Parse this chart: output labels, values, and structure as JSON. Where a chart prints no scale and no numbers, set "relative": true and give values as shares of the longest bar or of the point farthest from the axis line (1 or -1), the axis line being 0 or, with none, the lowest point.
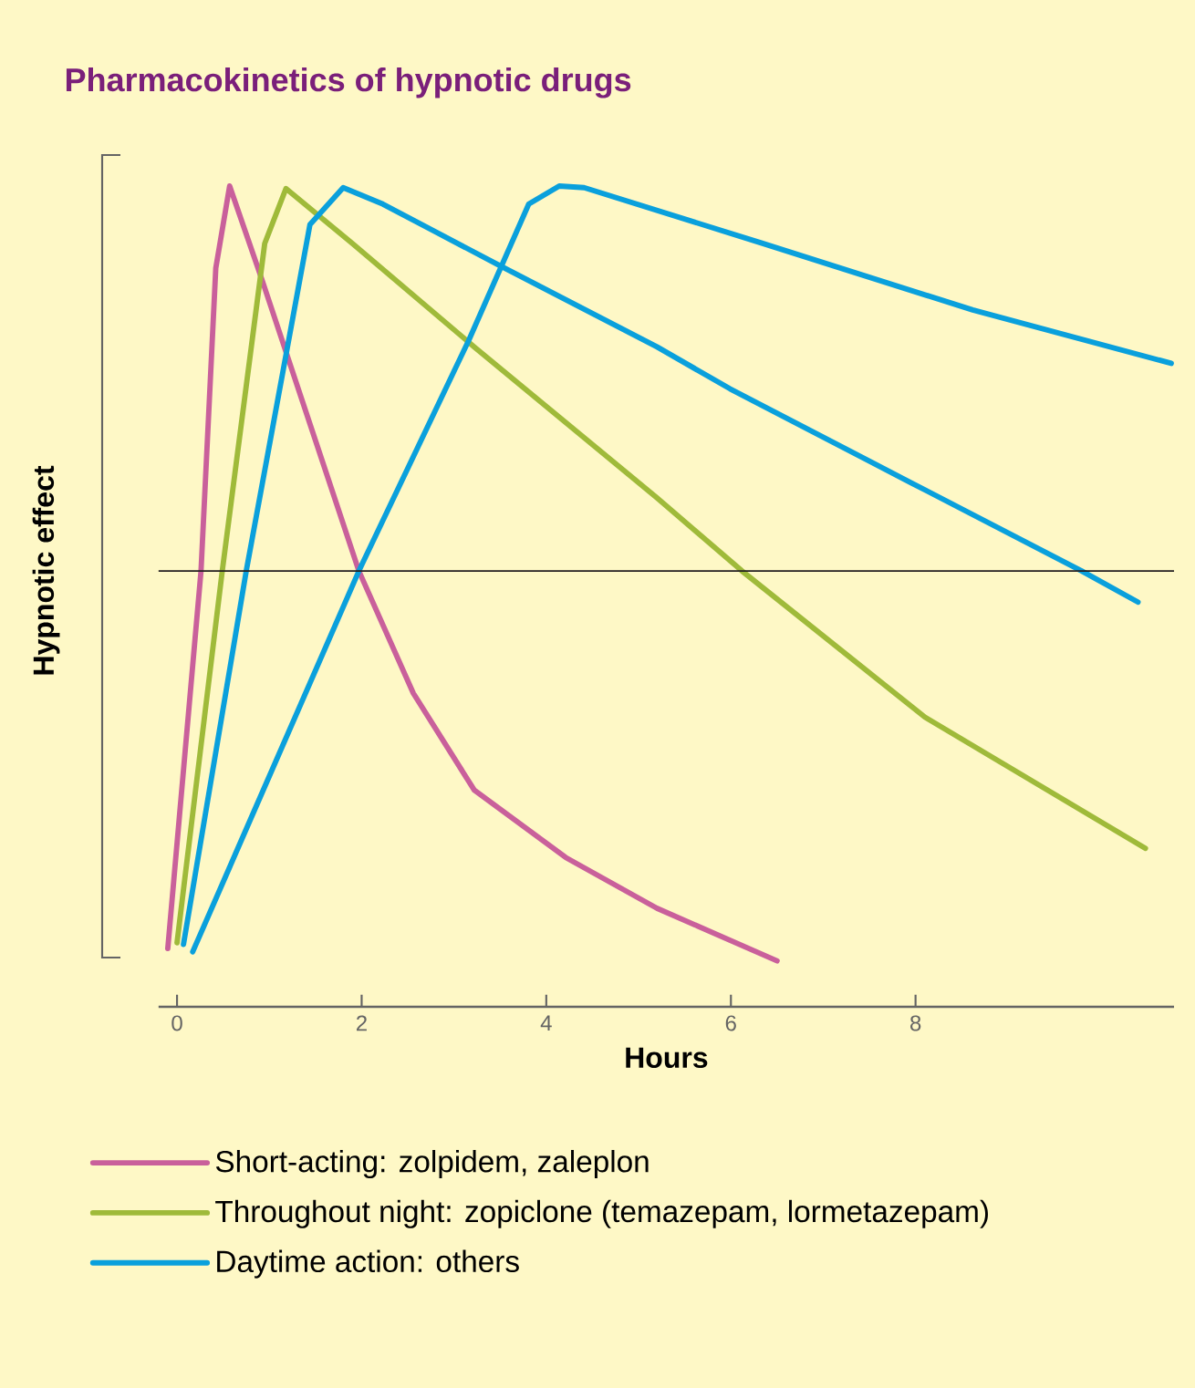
{
  "chart_data": {
    "type": "line",
    "title": "Pharmacokinetics of hypnotic drugs",
    "xlabel": "Hours",
    "ylabel": "Hypnotic effect",
    "relative": true,
    "xlim": [
      -0.2,
      10.8
    ],
    "xticks": [
      0,
      2,
      4,
      6,
      8
    ],
    "legend": "bottom",
    "marker": "none",
    "line_style": "solid",
    "grid": false,
    "ref_lines": [
      {
        "axis": "y",
        "value": 0.531,
        "color": "#231f20"
      }
    ],
    "series": [
      {
        "name": "Short-acting: zolpidem, zaleplon",
        "color": "#c9609b",
        "x": [
          -0.1,
          0.26,
          0.42,
          0.57,
          0.92,
          1.97,
          2.56,
          3.22,
          4.21,
          5.2,
          6.5
        ],
        "values": [
          0.071,
          0.531,
          0.9,
          1.0,
          0.886,
          0.531,
          0.382,
          0.264,
          0.182,
          0.12,
          0.056
        ]
      },
      {
        "name": "Throughout night: zopiclone (temazepam, lormetazepam)",
        "color": "#9fba3a",
        "x": [
          0.0,
          0.49,
          0.95,
          1.18,
          1.9,
          3.22,
          5.2,
          6.12,
          8.1,
          10.49
        ],
        "values": [
          0.078,
          0.531,
          0.93,
          0.997,
          0.93,
          0.804,
          0.62,
          0.531,
          0.353,
          0.193
        ]
      },
      {
        "name": "Daytime action: others",
        "color": "#0aa0dc",
        "x": [
          0.07,
          0.75,
          1.44,
          1.8,
          2.23,
          3.48,
          5.2,
          5.99,
          7.96,
          9.8,
          10.41
        ],
        "values": [
          0.076,
          0.531,
          0.953,
          0.998,
          0.978,
          0.904,
          0.804,
          0.753,
          0.638,
          0.531,
          0.493
        ]
      },
      {
        "color": "#0aa0dc",
        "x": [
          0.17,
          1.97,
          3.16,
          3.81,
          4.14,
          4.41,
          6.32,
          8.62,
          10.77
        ],
        "values": [
          0.067,
          0.531,
          0.812,
          0.978,
          1.0,
          0.998,
          0.931,
          0.849,
          0.784
        ]
      }
    ]
  }
}
